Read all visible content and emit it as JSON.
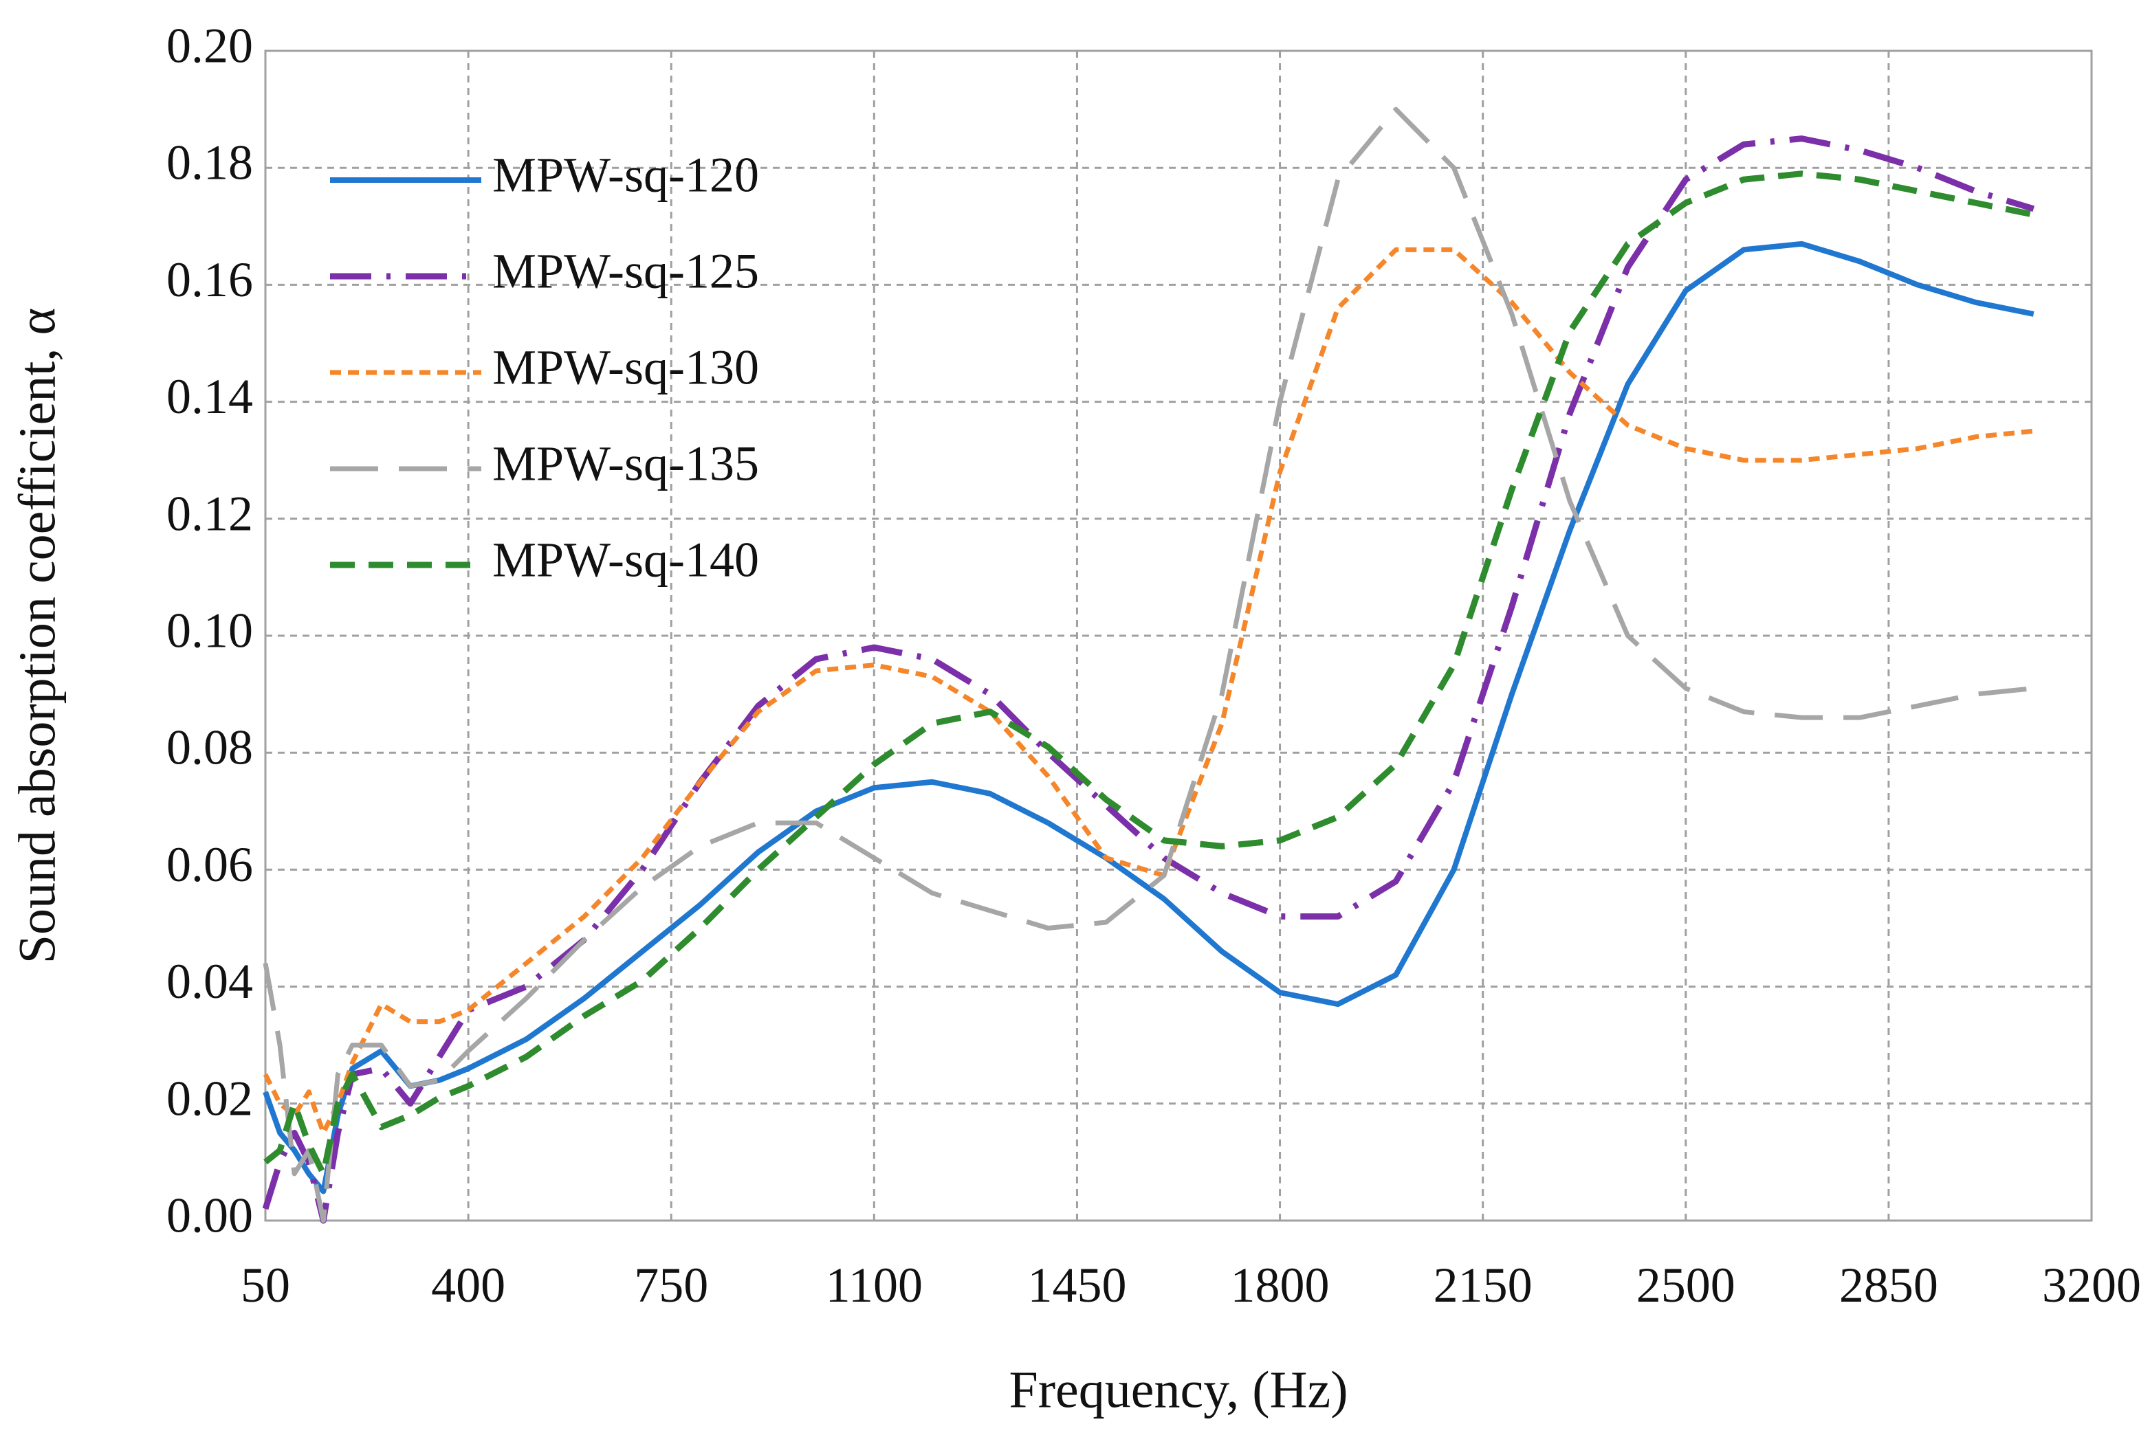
{
  "chart_data": {
    "type": "line",
    "xlabel": "Frequency, (Hz)",
    "ylabel": "Sound absorption coefficient, α",
    "x": [
      50,
      75,
      100,
      125,
      150,
      175,
      200,
      250,
      300,
      350,
      400,
      500,
      600,
      700,
      800,
      900,
      1000,
      1100,
      1200,
      1300,
      1400,
      1500,
      1600,
      1700,
      1800,
      1900,
      2000,
      2100,
      2200,
      2300,
      2400,
      2500,
      2600,
      2700,
      2800,
      2900,
      3000,
      3100
    ],
    "series": [
      {
        "name": "MPW-sq-120",
        "color": "#1f77d0",
        "values": [
          0.022,
          0.015,
          0.012,
          0.008,
          0.005,
          0.018,
          0.026,
          0.029,
          0.023,
          0.024,
          0.026,
          0.031,
          0.038,
          0.046,
          0.054,
          0.063,
          0.07,
          0.074,
          0.075,
          0.073,
          0.068,
          0.062,
          0.055,
          0.046,
          0.039,
          0.037,
          0.042,
          0.06,
          0.09,
          0.118,
          0.143,
          0.159,
          0.166,
          0.167,
          0.164,
          0.16,
          0.157,
          0.155
        ]
      },
      {
        "name": "MPW-sq-125",
        "color": "#7b2fa8",
        "values": [
          0.002,
          0.01,
          0.015,
          0.01,
          0.0,
          0.015,
          0.025,
          0.026,
          0.02,
          0.028,
          0.036,
          0.04,
          0.048,
          0.06,
          0.075,
          0.088,
          0.096,
          0.098,
          0.096,
          0.09,
          0.08,
          0.071,
          0.062,
          0.056,
          0.052,
          0.052,
          0.058,
          0.075,
          0.105,
          0.138,
          0.163,
          0.178,
          0.184,
          0.185,
          0.183,
          0.18,
          0.176,
          0.173
        ]
      },
      {
        "name": "MPW-sq-130",
        "color": "#f5862a",
        "values": [
          0.025,
          0.02,
          0.018,
          0.022,
          0.015,
          0.02,
          0.027,
          0.037,
          0.034,
          0.034,
          0.036,
          0.044,
          0.052,
          0.062,
          0.075,
          0.087,
          0.094,
          0.095,
          0.093,
          0.087,
          0.076,
          0.062,
          0.059,
          0.085,
          0.128,
          0.156,
          0.166,
          0.166,
          0.157,
          0.145,
          0.136,
          0.132,
          0.13,
          0.13,
          0.131,
          0.132,
          0.134,
          0.135
        ]
      },
      {
        "name": "MPW-sq-135",
        "color": "#a6a6a6",
        "values": [
          0.044,
          0.03,
          0.008,
          0.012,
          0.0,
          0.025,
          0.03,
          0.03,
          0.023,
          0.024,
          0.029,
          0.038,
          0.048,
          0.057,
          0.064,
          0.068,
          0.068,
          0.062,
          0.056,
          0.053,
          0.05,
          0.051,
          0.059,
          0.09,
          0.14,
          0.178,
          0.19,
          0.18,
          0.155,
          0.123,
          0.1,
          0.091,
          0.087,
          0.086,
          0.086,
          0.088,
          0.09,
          0.091
        ]
      },
      {
        "name": "MPW-sq-140",
        "color": "#2e8b2e",
        "values": [
          0.01,
          0.012,
          0.02,
          0.013,
          0.008,
          0.02,
          0.025,
          0.016,
          0.018,
          0.021,
          0.023,
          0.028,
          0.035,
          0.041,
          0.05,
          0.06,
          0.069,
          0.078,
          0.085,
          0.087,
          0.081,
          0.072,
          0.065,
          0.064,
          0.065,
          0.069,
          0.078,
          0.095,
          0.125,
          0.152,
          0.167,
          0.174,
          0.178,
          0.179,
          0.178,
          0.176,
          0.174,
          0.172
        ]
      }
    ],
    "xlim": [
      50,
      3200
    ],
    "xticks": [
      50,
      400,
      750,
      1100,
      1450,
      1800,
      2150,
      2500,
      2850,
      3200
    ],
    "ylim": [
      0,
      0.2
    ],
    "yticks": [
      {
        "value": 0,
        "label": "0.00"
      },
      0.02,
      0.04,
      0.06,
      0.08,
      {
        "value": 0.1,
        "label": "0.10"
      },
      0.12,
      0.14,
      0.16,
      0.18,
      {
        "value": 0.2,
        "label": "0.20"
      }
    ],
    "grid": true,
    "legend": "upper left"
  }
}
